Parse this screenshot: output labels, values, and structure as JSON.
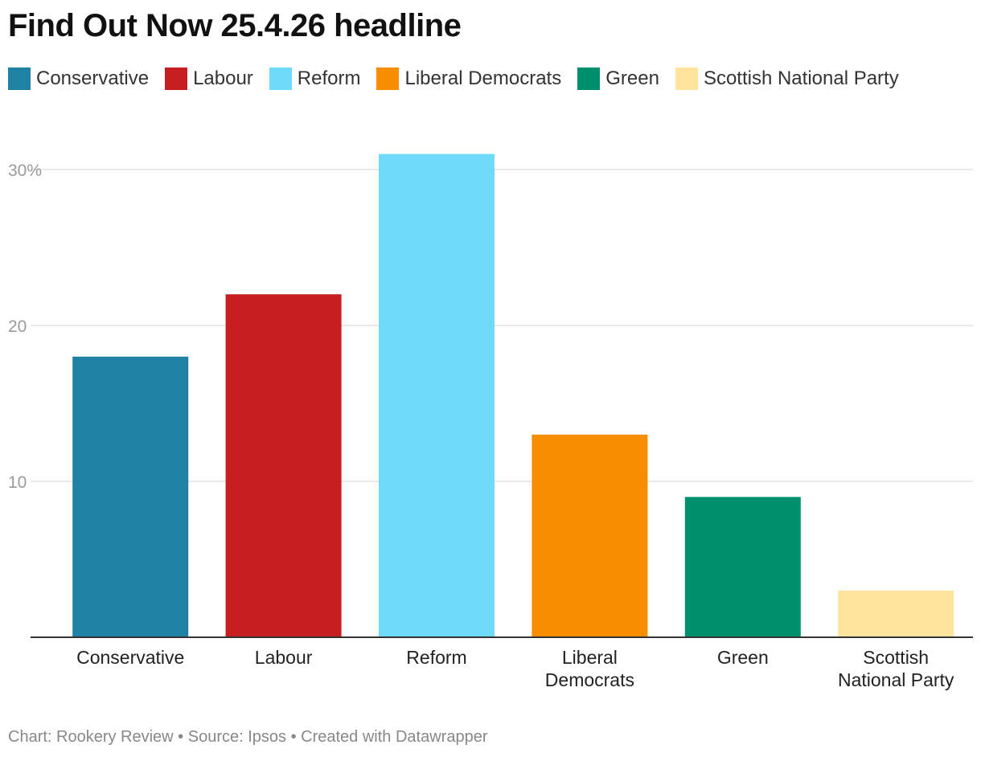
{
  "title": "Find Out Now 25.4.26 headline",
  "footer": "Chart: Rookery Review • Source: Ipsos • Created with Datawrapper",
  "chart_data": {
    "type": "bar",
    "title": "Find Out Now 25.4.26 headline",
    "categories": [
      "Conservative",
      "Labour",
      "Reform",
      "Liberal Democrats",
      "Green",
      "Scottish National Party"
    ],
    "category_labels": [
      [
        "Conservative"
      ],
      [
        "Labour"
      ],
      [
        "Reform"
      ],
      [
        "Liberal",
        "Democrats"
      ],
      [
        "Green"
      ],
      [
        "Scottish",
        "National Party"
      ]
    ],
    "values": [
      18,
      22,
      31,
      13,
      9,
      3
    ],
    "colors": [
      "#1f81a3",
      "#c71e1f",
      "#6fdbfc",
      "#f78d00",
      "#00906d",
      "#ffe49e"
    ],
    "legend": [
      "Conservative",
      "Labour",
      "Reform",
      "Liberal Democrats",
      "Green",
      "Scottish National Party"
    ],
    "y_ticks": [
      10,
      20,
      30
    ],
    "y_tick_labels": [
      "10",
      "20",
      "30%"
    ],
    "ylim": [
      0,
      30
    ],
    "grid": true,
    "legend_position": "top-left",
    "xlabel": "",
    "ylabel": ""
  }
}
